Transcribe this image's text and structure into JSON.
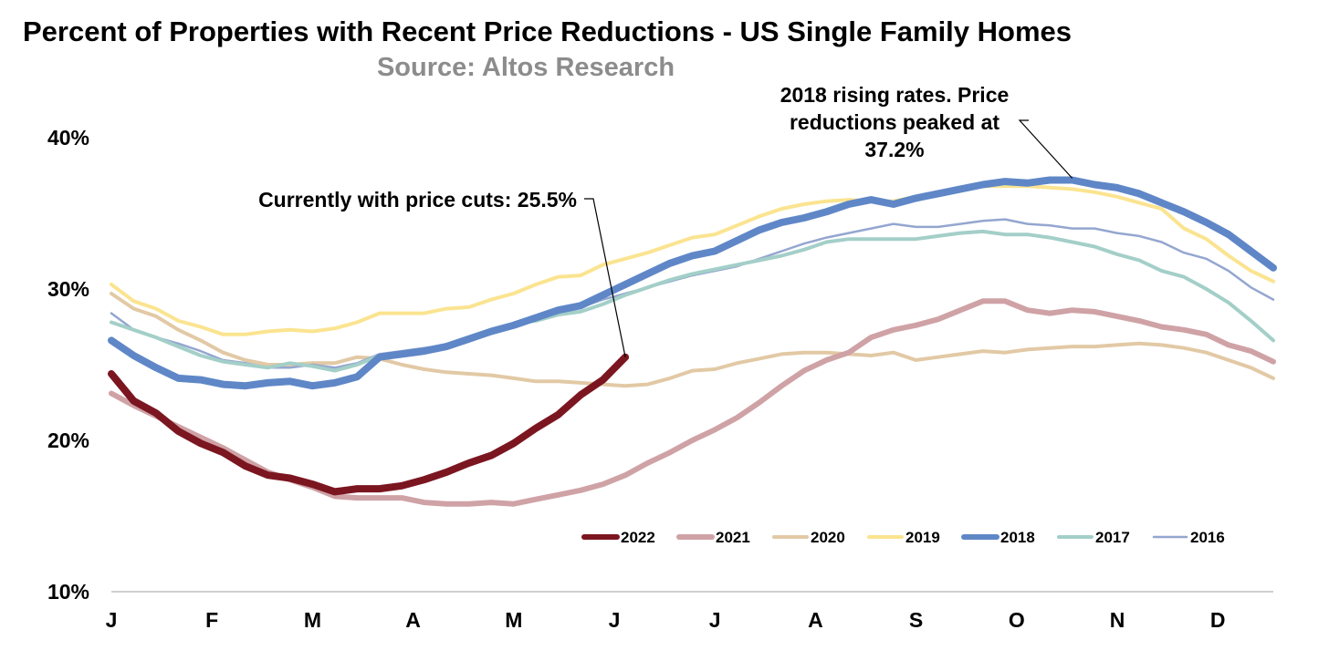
{
  "chart_data": {
    "type": "line",
    "title": "Percent of Properties with Recent Price Reductions - US Single Family Homes",
    "subtitle": "Source: Altos Research",
    "xlabel": "",
    "ylabel": "",
    "ylim": [
      10,
      40
    ],
    "y_ticks": [
      "40%",
      "30%",
      "20%",
      "10%"
    ],
    "y_tick_values": [
      40,
      30,
      20,
      10
    ],
    "x_tick_labels": [
      "J",
      "F",
      "M",
      "A",
      "M",
      "J",
      "J",
      "A",
      "S",
      "O",
      "N",
      "D"
    ],
    "x_range_weeks": [
      0,
      52
    ],
    "grid": false,
    "legend_position": "bottom-right",
    "annotations": [
      {
        "lines": [
          "Currently with price cuts: 25.5%"
        ],
        "target_series": "2022",
        "target_week": 23
      },
      {
        "lines": [
          "2018 rising rates. Price",
          "reductions peaked at",
          "37.2%"
        ],
        "target_series": "2018",
        "target_week": 43
      }
    ],
    "series": [
      {
        "name": "2022",
        "color": "#7b1620",
        "values": [
          24.4,
          22.6,
          21.8,
          20.6,
          19.8,
          19.2,
          18.3,
          17.7,
          17.5,
          17.1,
          16.6,
          16.8,
          16.8,
          17.0,
          17.4,
          17.9,
          18.5,
          19.0,
          19.8,
          20.8,
          21.7,
          23.0,
          24.0,
          25.5
        ]
      },
      {
        "name": "2021",
        "color": "#cfa2a6",
        "values": [
          23.1,
          22.3,
          21.6,
          20.9,
          20.2,
          19.5,
          18.7,
          17.9,
          17.4,
          16.9,
          16.3,
          16.2,
          16.2,
          16.2,
          15.9,
          15.8,
          15.8,
          15.9,
          15.8,
          16.1,
          16.4,
          16.7,
          17.1,
          17.7,
          18.5,
          19.2,
          20.0,
          20.7,
          21.5,
          22.5,
          23.6,
          24.6,
          25.3,
          25.8,
          26.8,
          27.3,
          27.6,
          28.0,
          28.6,
          29.2,
          29.2,
          28.6,
          28.4,
          28.6,
          28.5,
          28.2,
          27.9,
          27.5,
          27.3,
          27.0,
          26.3,
          25.9,
          25.2
        ]
      },
      {
        "name": "2020",
        "color": "#e2c9a5",
        "values": [
          29.7,
          28.7,
          28.2,
          27.3,
          26.6,
          25.8,
          25.3,
          25.0,
          25.0,
          25.1,
          25.1,
          25.5,
          25.4,
          25.0,
          24.7,
          24.5,
          24.4,
          24.3,
          24.1,
          23.9,
          23.9,
          23.8,
          23.7,
          23.6,
          23.7,
          24.1,
          24.6,
          24.7,
          25.1,
          25.4,
          25.7,
          25.8,
          25.8,
          25.7,
          25.6,
          25.8,
          25.3,
          25.5,
          25.7,
          25.9,
          25.8,
          26.0,
          26.1,
          26.2,
          26.2,
          26.3,
          26.4,
          26.3,
          26.1,
          25.8,
          25.3,
          24.8,
          24.1
        ]
      },
      {
        "name": "2019",
        "color": "#fbe490",
        "values": [
          30.3,
          29.2,
          28.7,
          27.9,
          27.5,
          27.0,
          27.0,
          27.2,
          27.3,
          27.2,
          27.4,
          27.8,
          28.4,
          28.4,
          28.4,
          28.7,
          28.8,
          29.3,
          29.7,
          30.3,
          30.8,
          30.9,
          31.6,
          32.0,
          32.4,
          32.9,
          33.4,
          33.6,
          34.2,
          34.8,
          35.3,
          35.6,
          35.8,
          35.9,
          35.8,
          35.8,
          36.1,
          36.3,
          36.6,
          36.8,
          36.8,
          36.8,
          36.7,
          36.6,
          36.4,
          36.1,
          35.7,
          35.3,
          34.0,
          33.3,
          32.2,
          31.2,
          30.5
        ]
      },
      {
        "name": "2018",
        "color": "#5f87c7",
        "values": [
          26.6,
          25.6,
          24.8,
          24.1,
          24.0,
          23.7,
          23.6,
          23.8,
          23.9,
          23.6,
          23.8,
          24.2,
          25.5,
          25.7,
          25.9,
          26.2,
          26.7,
          27.2,
          27.6,
          28.1,
          28.6,
          28.9,
          29.6,
          30.3,
          31.0,
          31.7,
          32.2,
          32.5,
          33.2,
          33.9,
          34.4,
          34.7,
          35.1,
          35.6,
          35.9,
          35.6,
          36.0,
          36.3,
          36.6,
          36.9,
          37.1,
          37.0,
          37.2,
          37.2,
          36.9,
          36.7,
          36.3,
          35.7,
          35.1,
          34.4,
          33.6,
          32.5,
          31.4
        ]
      },
      {
        "name": "2017",
        "color": "#a3cfc8",
        "values": [
          27.8,
          27.3,
          26.8,
          26.2,
          25.6,
          25.2,
          25.0,
          24.8,
          25.1,
          24.9,
          24.6,
          25.0,
          25.6,
          25.8,
          25.9,
          26.1,
          26.8,
          27.3,
          27.7,
          27.9,
          28.3,
          28.5,
          29.0,
          29.6,
          30.1,
          30.6,
          31.0,
          31.3,
          31.6,
          31.9,
          32.2,
          32.6,
          33.1,
          33.3,
          33.3,
          33.3,
          33.3,
          33.5,
          33.7,
          33.8,
          33.6,
          33.6,
          33.4,
          33.1,
          32.8,
          32.3,
          31.9,
          31.2,
          30.8,
          30.0,
          29.1,
          27.9,
          26.6
        ]
      },
      {
        "name": "2016",
        "color": "#94a6d0",
        "values": [
          28.4,
          27.3,
          26.8,
          26.4,
          25.9,
          25.3,
          25.1,
          24.8,
          24.8,
          25.0,
          24.8,
          25.1,
          25.7,
          25.9,
          26.1,
          26.3,
          26.8,
          27.2,
          27.6,
          28.0,
          28.4,
          28.8,
          29.3,
          29.7,
          30.1,
          30.5,
          30.9,
          31.2,
          31.5,
          32.0,
          32.5,
          33.0,
          33.4,
          33.7,
          34.0,
          34.3,
          34.1,
          34.1,
          34.3,
          34.5,
          34.6,
          34.3,
          34.2,
          34.0,
          34.0,
          33.7,
          33.5,
          33.1,
          32.4,
          32.0,
          31.2,
          30.1,
          29.3
        ]
      }
    ]
  }
}
